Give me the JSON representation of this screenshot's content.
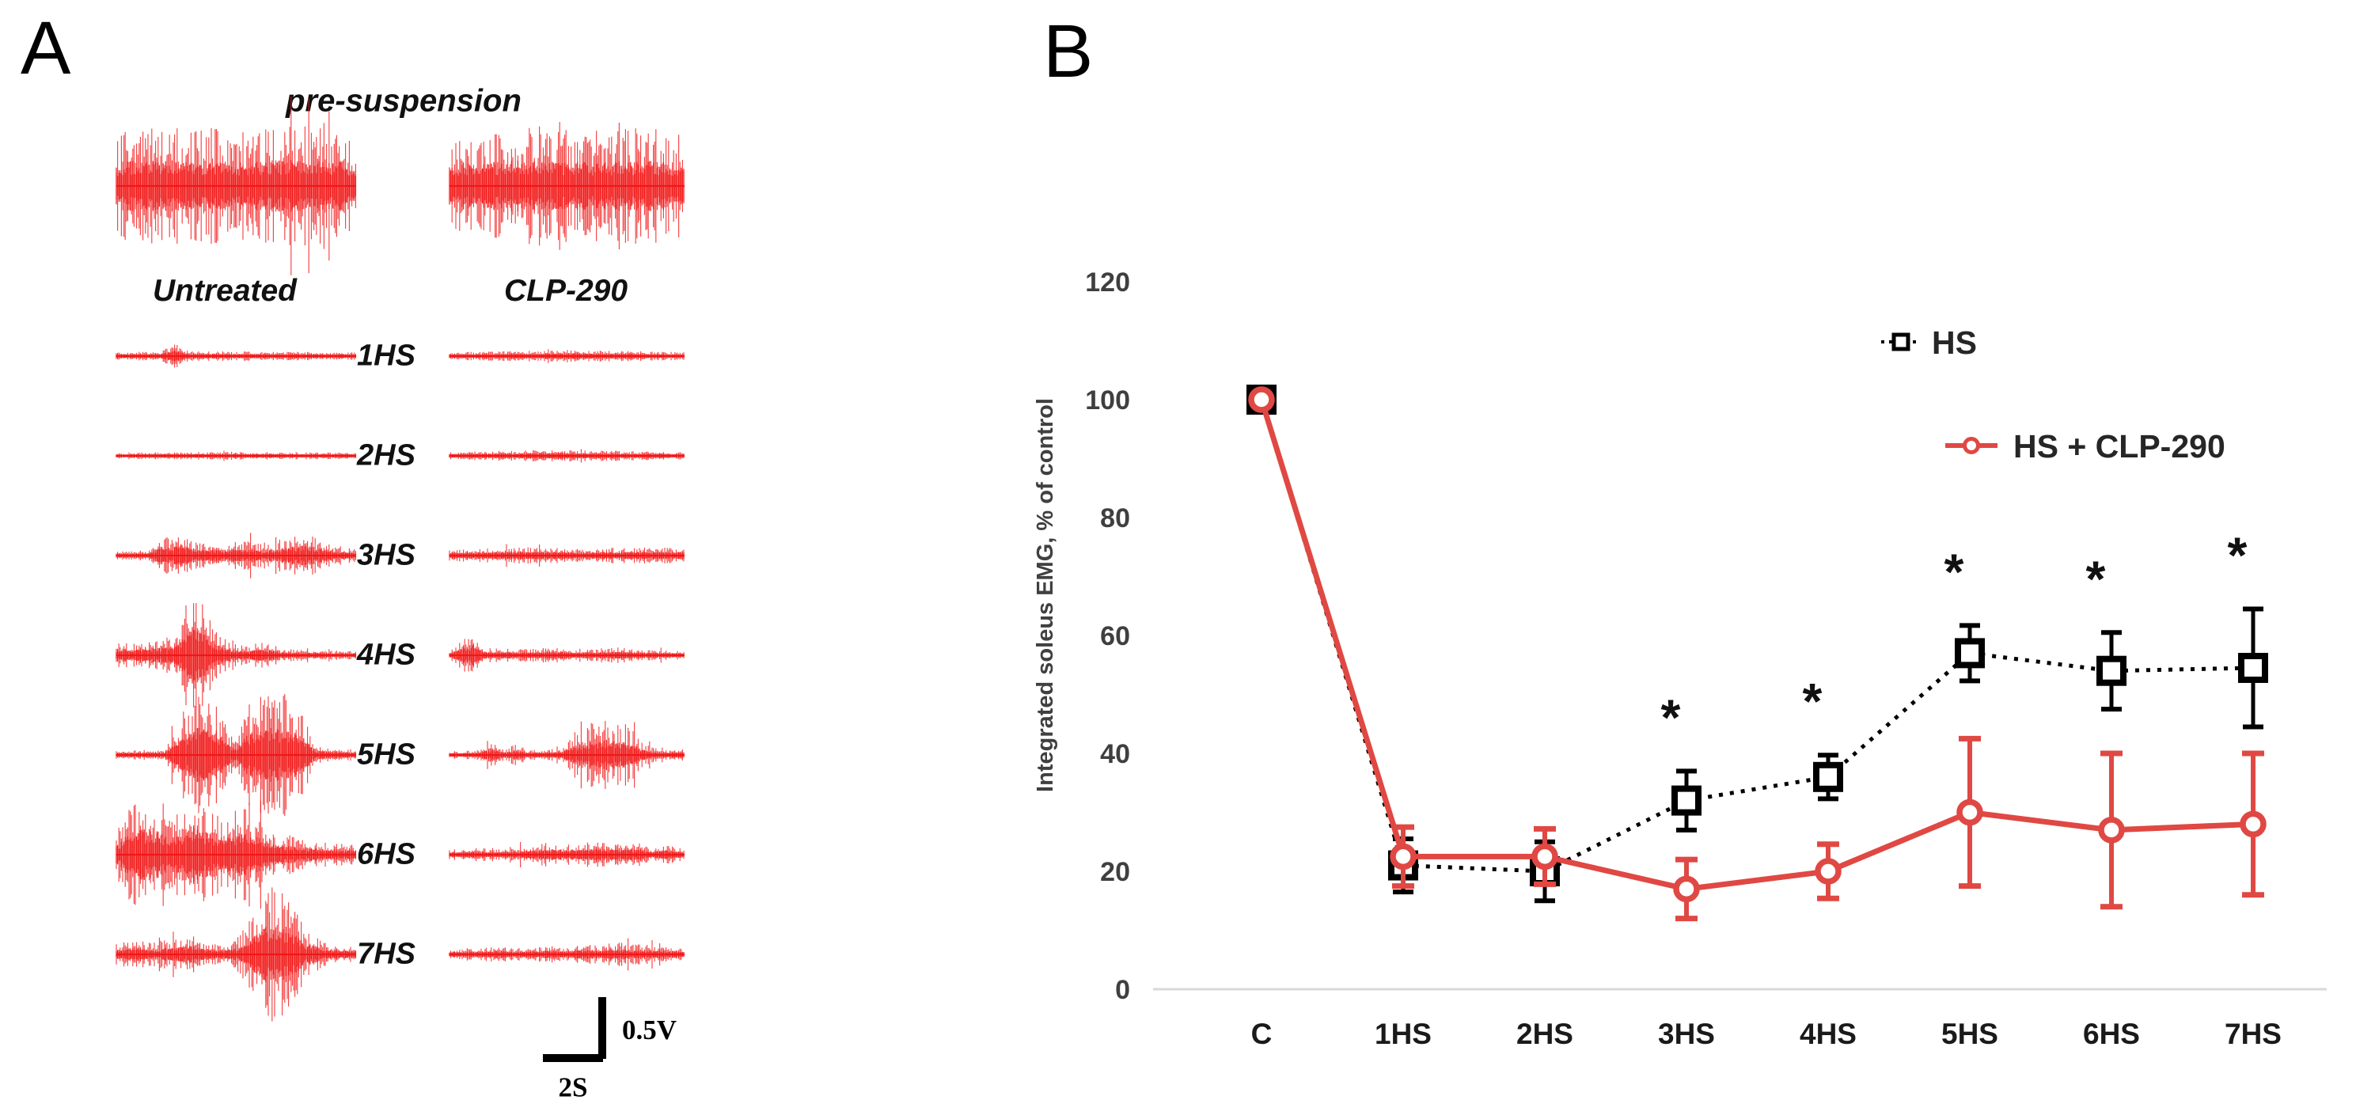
{
  "panelA": {
    "label": "A",
    "pre_suspension_label": "pre-suspension",
    "columns": [
      "Untreated",
      "CLP-290"
    ],
    "rows": [
      "1HS",
      "2HS",
      "3HS",
      "4HS",
      "5HS",
      "6HS",
      "7HS"
    ],
    "scale_bar": {
      "voltage": "0.5V",
      "time": "2S"
    },
    "trace_color": "#f11616",
    "traces": {
      "pre": [
        {
          "col": "Untreated",
          "env": [
            [
              0,
              40
            ],
            [
              0.05,
              52
            ],
            [
              0.3,
              54
            ],
            [
              0.5,
              50
            ],
            [
              0.7,
              54
            ],
            [
              0.95,
              52
            ],
            [
              1,
              42
            ]
          ]
        },
        {
          "col": "CLP-290",
          "env": [
            [
              0,
              42
            ],
            [
              0.06,
              50
            ],
            [
              0.35,
              54
            ],
            [
              0.6,
              50
            ],
            [
              0.9,
              53
            ],
            [
              1,
              44
            ]
          ]
        }
      ],
      "rows": [
        {
          "label": "1HS",
          "left": [
            [
              0,
              3
            ],
            [
              0.18,
              3.5
            ],
            [
              0.24,
              11
            ],
            [
              0.3,
              4
            ],
            [
              0.6,
              3.5
            ],
            [
              1,
              3
            ]
          ],
          "right": [
            [
              0,
              3
            ],
            [
              0.3,
              4
            ],
            [
              0.5,
              5
            ],
            [
              0.75,
              4
            ],
            [
              1,
              3
            ]
          ]
        },
        {
          "label": "2HS",
          "left": [
            [
              0,
              2.5
            ],
            [
              0.5,
              3
            ],
            [
              1,
              2.5
            ]
          ],
          "right": [
            [
              0,
              3
            ],
            [
              0.45,
              5
            ],
            [
              0.7,
              4
            ],
            [
              1,
              3
            ]
          ]
        },
        {
          "label": "3HS",
          "left": [
            [
              0,
              3
            ],
            [
              0.13,
              4
            ],
            [
              0.2,
              18
            ],
            [
              0.27,
              24
            ],
            [
              0.35,
              12
            ],
            [
              0.45,
              10
            ],
            [
              0.55,
              14
            ],
            [
              0.62,
              9
            ],
            [
              0.72,
              18
            ],
            [
              0.8,
              20
            ],
            [
              0.88,
              10
            ],
            [
              1,
              5
            ]
          ],
          "right": [
            [
              0,
              5
            ],
            [
              0.3,
              7
            ],
            [
              0.6,
              6
            ],
            [
              0.85,
              7
            ],
            [
              1,
              6
            ]
          ]
        },
        {
          "label": "4HS",
          "left": [
            [
              0,
              10
            ],
            [
              0.12,
              13
            ],
            [
              0.25,
              18
            ],
            [
              0.3,
              55
            ],
            [
              0.35,
              65
            ],
            [
              0.4,
              25
            ],
            [
              0.48,
              10
            ],
            [
              0.55,
              8
            ],
            [
              0.62,
              12
            ],
            [
              0.7,
              5
            ],
            [
              0.85,
              4
            ],
            [
              1,
              3
            ]
          ],
          "right": [
            [
              0,
              3
            ],
            [
              0.06,
              16
            ],
            [
              0.1,
              22
            ],
            [
              0.15,
              6
            ],
            [
              0.3,
              5
            ],
            [
              0.45,
              7
            ],
            [
              0.55,
              4
            ],
            [
              0.7,
              7
            ],
            [
              0.78,
              5
            ],
            [
              0.9,
              4
            ],
            [
              1,
              3
            ]
          ]
        },
        {
          "label": "5HS",
          "left": [
            [
              0,
              4
            ],
            [
              0.2,
              4
            ],
            [
              0.26,
              30
            ],
            [
              0.32,
              58
            ],
            [
              0.4,
              62
            ],
            [
              0.46,
              25
            ],
            [
              0.5,
              12
            ],
            [
              0.55,
              45
            ],
            [
              0.62,
              58
            ],
            [
              0.7,
              60
            ],
            [
              0.78,
              35
            ],
            [
              0.83,
              8
            ],
            [
              1,
              4
            ]
          ],
          "right": [
            [
              0,
              3
            ],
            [
              0.12,
              4
            ],
            [
              0.18,
              12
            ],
            [
              0.23,
              5
            ],
            [
              0.28,
              9
            ],
            [
              0.34,
              4
            ],
            [
              0.48,
              5
            ],
            [
              0.54,
              22
            ],
            [
              0.6,
              28
            ],
            [
              0.68,
              32
            ],
            [
              0.76,
              28
            ],
            [
              0.82,
              10
            ],
            [
              0.9,
              4
            ],
            [
              1,
              5
            ]
          ]
        },
        {
          "label": "6HS",
          "left": [
            [
              0,
              18
            ],
            [
              0.04,
              42
            ],
            [
              0.1,
              55
            ],
            [
              0.18,
              48
            ],
            [
              0.25,
              38
            ],
            [
              0.32,
              58
            ],
            [
              0.4,
              42
            ],
            [
              0.48,
              38
            ],
            [
              0.55,
              48
            ],
            [
              0.62,
              28
            ],
            [
              0.7,
              18
            ],
            [
              0.8,
              14
            ],
            [
              0.9,
              11
            ],
            [
              1,
              9
            ]
          ],
          "right": [
            [
              0,
              4
            ],
            [
              0.1,
              6
            ],
            [
              0.22,
              5
            ],
            [
              0.35,
              8
            ],
            [
              0.44,
              11
            ],
            [
              0.5,
              8
            ],
            [
              0.56,
              10
            ],
            [
              0.64,
              12
            ],
            [
              0.72,
              10
            ],
            [
              0.8,
              11
            ],
            [
              0.86,
              5
            ],
            [
              0.92,
              9
            ],
            [
              1,
              4
            ]
          ]
        },
        {
          "label": "7HS",
          "left": [
            [
              0,
              9
            ],
            [
              0.08,
              13
            ],
            [
              0.16,
              11
            ],
            [
              0.24,
              14
            ],
            [
              0.3,
              19
            ],
            [
              0.36,
              11
            ],
            [
              0.44,
              9
            ],
            [
              0.5,
              13
            ],
            [
              0.55,
              28
            ],
            [
              0.6,
              55
            ],
            [
              0.66,
              62
            ],
            [
              0.73,
              48
            ],
            [
              0.79,
              22
            ],
            [
              0.88,
              9
            ],
            [
              1,
              7
            ]
          ],
          "right": [
            [
              0,
              4
            ],
            [
              0.1,
              5
            ],
            [
              0.2,
              6
            ],
            [
              0.32,
              5
            ],
            [
              0.42,
              7
            ],
            [
              0.5,
              6
            ],
            [
              0.58,
              9
            ],
            [
              0.64,
              7
            ],
            [
              0.7,
              11
            ],
            [
              0.78,
              9
            ],
            [
              0.85,
              8
            ],
            [
              0.93,
              7
            ],
            [
              1,
              5
            ]
          ]
        }
      ]
    }
  },
  "panelB": {
    "label": "B",
    "legend": [
      {
        "label": "HS",
        "color": "#000000",
        "line": "dotted",
        "marker": "square"
      },
      {
        "label": "HS + CLP-290",
        "color": "#e04843",
        "line": "solid",
        "marker": "circle"
      }
    ]
  },
  "chart_data": {
    "type": "line",
    "categories": [
      "C",
      "1HS",
      "2HS",
      "3HS",
      "4HS",
      "5HS",
      "6HS",
      "7HS"
    ],
    "xlabel": "",
    "ylabel": "Integrated soleus EMG, % of control",
    "ylim": [
      0,
      120
    ],
    "yticks": [
      0,
      20,
      40,
      60,
      80,
      100,
      120
    ],
    "grid": false,
    "legend_position": "top-right",
    "axis_color": "#d9d9d9",
    "tick_color": "#3f3f3f",
    "series": [
      {
        "name": "HS",
        "color": "#000000",
        "line": "dotted",
        "marker": "open-square",
        "values": [
          100,
          21,
          20,
          32,
          36,
          57,
          54,
          54.5
        ],
        "errors": [
          0,
          4.5,
          5,
          5,
          3.7,
          4.7,
          6.5,
          10
        ],
        "significant": [
          false,
          false,
          false,
          true,
          true,
          true,
          true,
          true
        ]
      },
      {
        "name": "HS + CLP-290",
        "color": "#e04843",
        "line": "solid",
        "marker": "open-circle",
        "values": [
          100,
          22.5,
          22.5,
          17,
          20,
          30,
          27,
          28
        ],
        "errors": [
          0,
          5,
          4.7,
          5,
          4.6,
          12.5,
          13,
          12
        ],
        "significant": [
          false,
          false,
          false,
          false,
          false,
          false,
          false,
          false
        ]
      }
    ],
    "significance_symbol": "*"
  }
}
